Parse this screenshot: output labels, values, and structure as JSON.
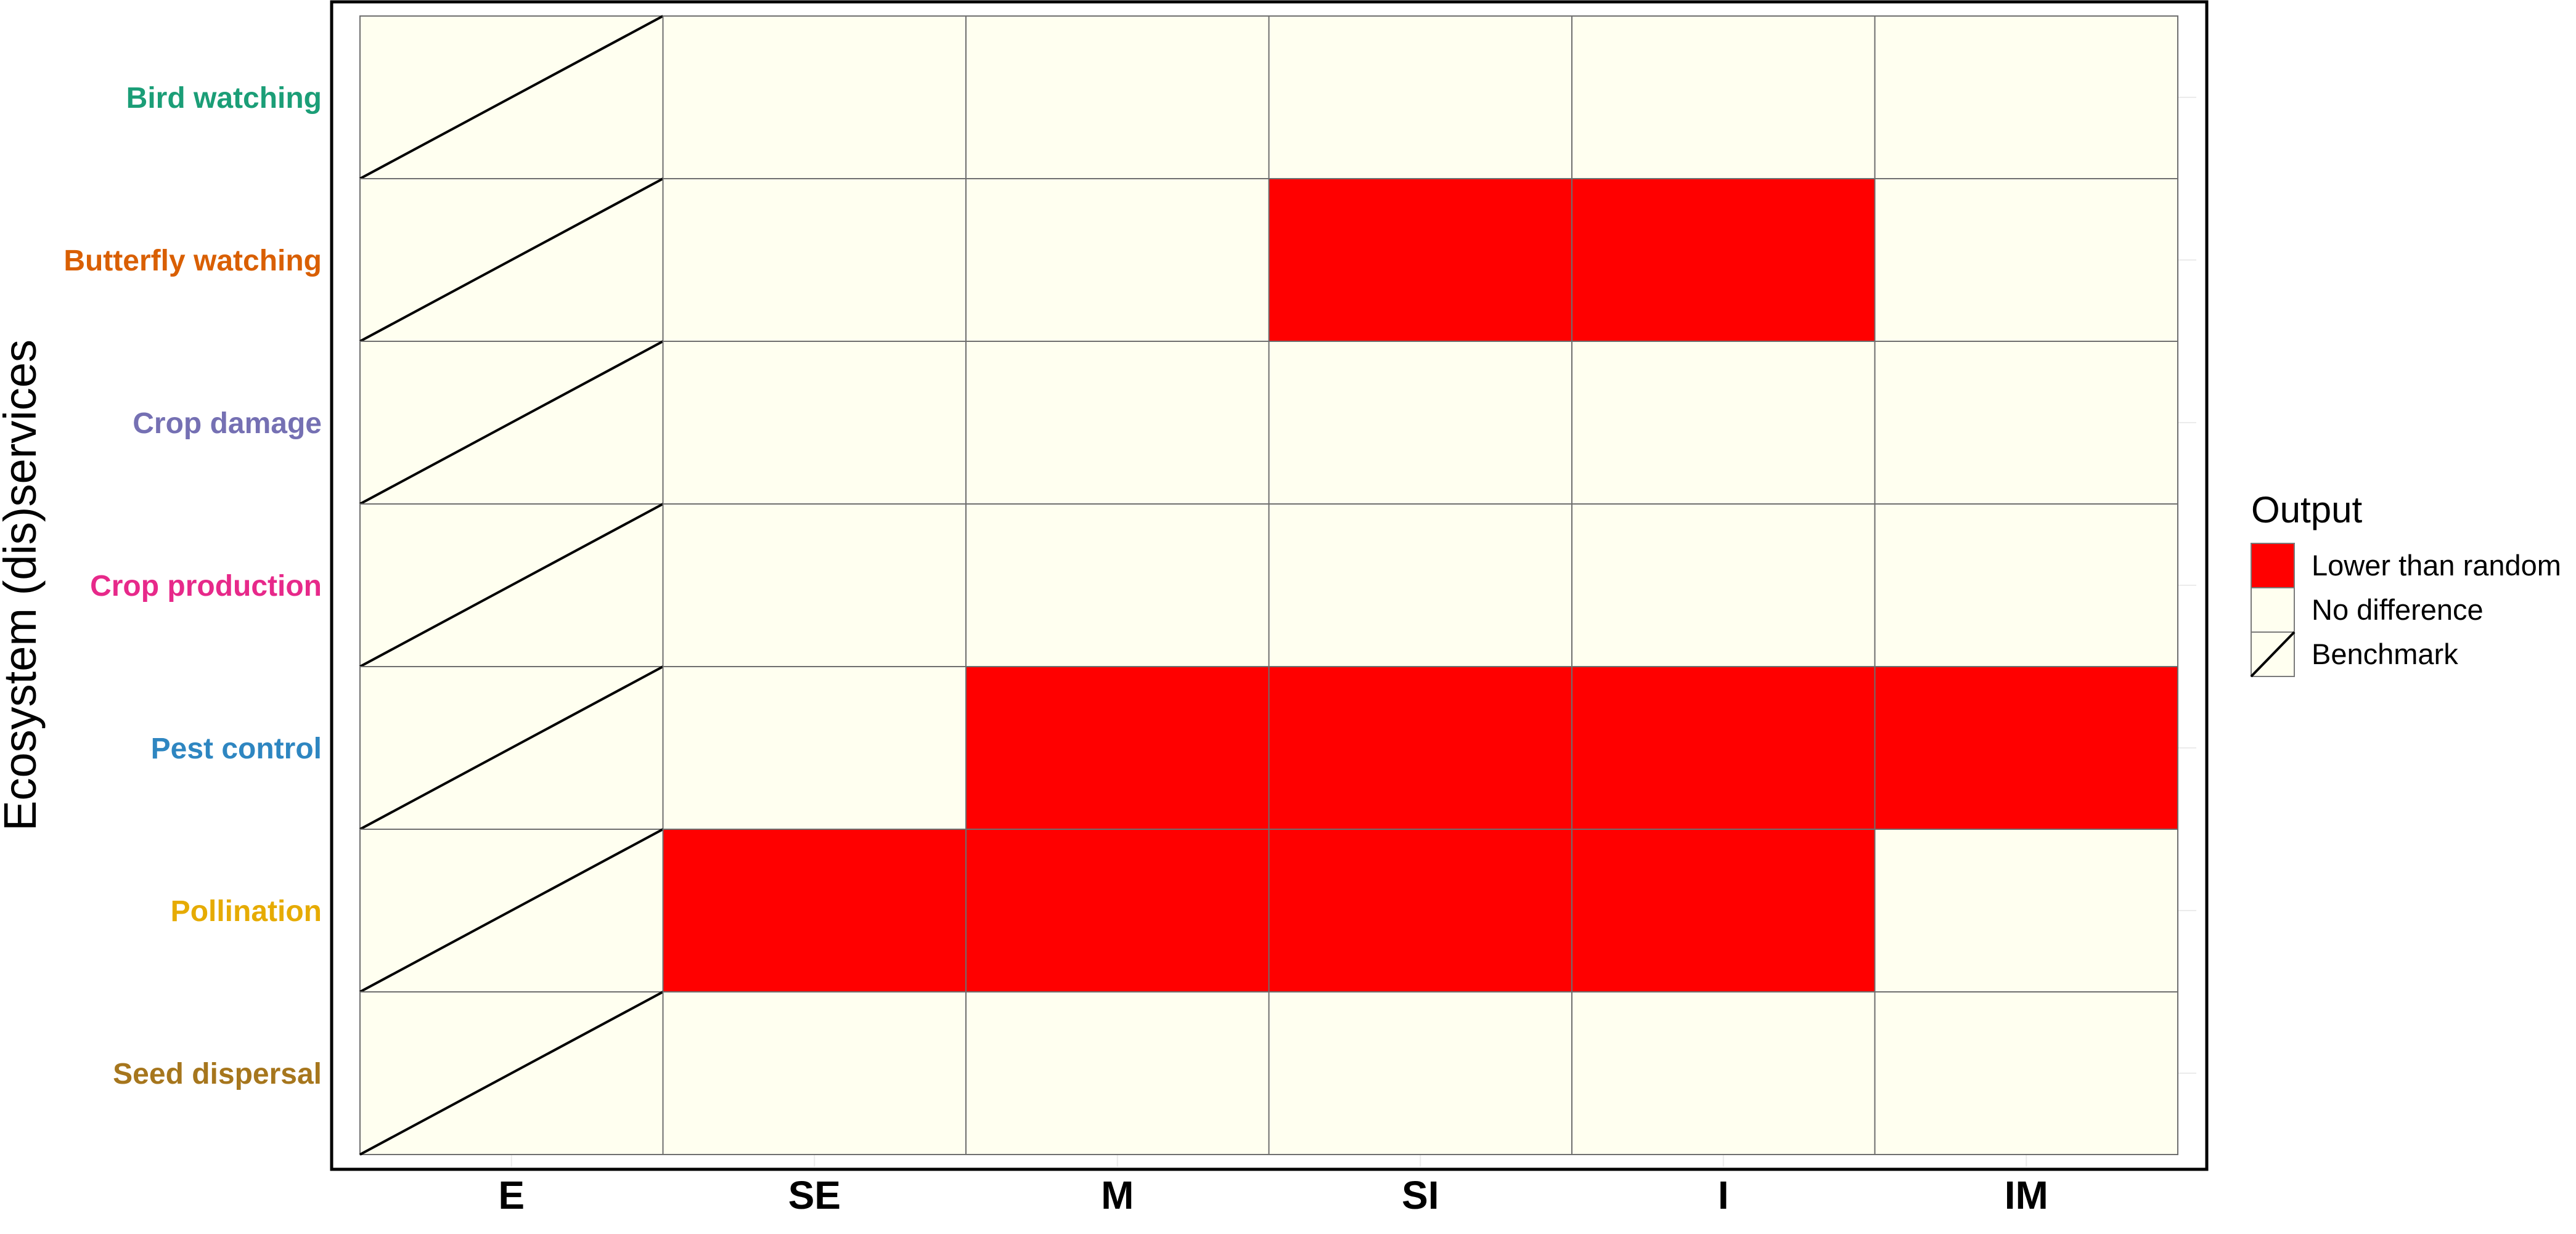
{
  "chart_data": {
    "type": "heatmap",
    "title": "",
    "xlabel": "",
    "ylabel": "Ecosystem (dis)services",
    "x_categories": [
      "E",
      "SE",
      "M",
      "SI",
      "I",
      "IM"
    ],
    "y_categories": [
      "Bird watching",
      "Butterfly watching",
      "Crop damage",
      "Crop production",
      "Pest control",
      "Pollination",
      "Seed dispersal"
    ],
    "y_label_colors": [
      "#1B9E77",
      "#D95F02",
      "#7570B3",
      "#E7298A",
      "#2E86C1",
      "#E6AB02",
      "#A6761D"
    ],
    "cells": [
      [
        "Benchmark",
        "No difference",
        "No difference",
        "No difference",
        "No difference",
        "No difference"
      ],
      [
        "Benchmark",
        "No difference",
        "No difference",
        "Lower than random",
        "Lower than random",
        "No difference"
      ],
      [
        "Benchmark",
        "No difference",
        "No difference",
        "No difference",
        "No difference",
        "No difference"
      ],
      [
        "Benchmark",
        "No difference",
        "No difference",
        "No difference",
        "No difference",
        "No difference"
      ],
      [
        "Benchmark",
        "No difference",
        "Lower than random",
        "Lower than random",
        "Lower than random",
        "Lower than random"
      ],
      [
        "Benchmark",
        "Lower than random",
        "Lower than random",
        "Lower than random",
        "Lower than random",
        "No difference"
      ],
      [
        "Benchmark",
        "No difference",
        "No difference",
        "No difference",
        "No difference",
        "No difference"
      ]
    ],
    "legend": {
      "title": "Output",
      "position": "right",
      "entries": [
        {
          "label": "Lower than random",
          "color": "#FF0000",
          "style": "fill"
        },
        {
          "label": "No difference",
          "color": "#FFFFF0",
          "style": "fill"
        },
        {
          "label": "Benchmark",
          "color": "#FFFFF0",
          "style": "diagonal"
        }
      ]
    },
    "grid": true
  }
}
